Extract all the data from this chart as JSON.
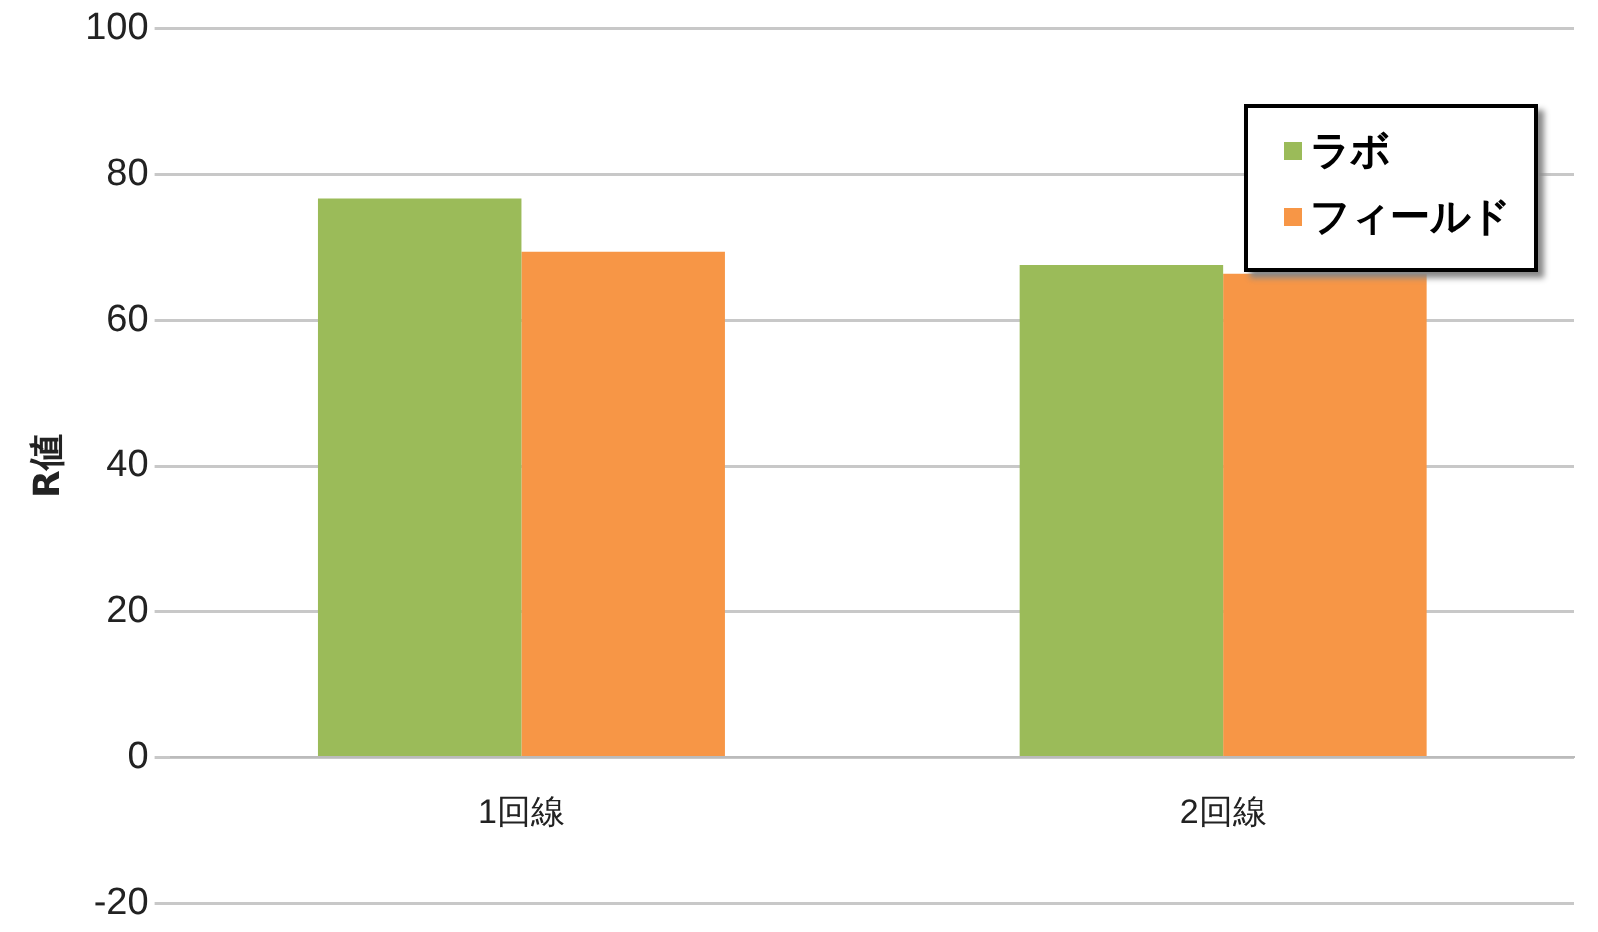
{
  "chart_data": {
    "type": "bar",
    "ylabel": "R値",
    "categories": [
      "1回線",
      "2回線"
    ],
    "series": [
      {
        "name": "ラボ",
        "color": "#9bbb59",
        "values": [
          76.7,
          67.6
        ]
      },
      {
        "name": "フィールド",
        "color": "#f79646",
        "values": [
          69.4,
          66.4
        ]
      }
    ],
    "ylim": [
      -20,
      100
    ],
    "yticks": [
      -20,
      0,
      20,
      40,
      60,
      80,
      100
    ],
    "grid": "y",
    "legend": "top right"
  }
}
